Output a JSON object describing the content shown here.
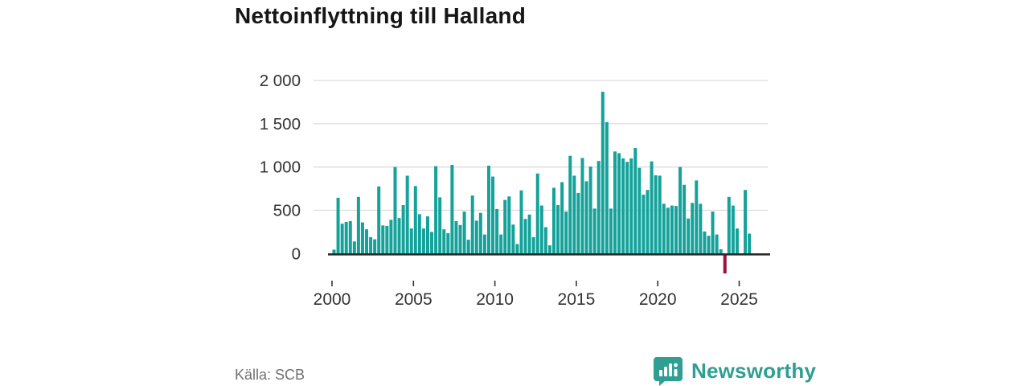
{
  "title": "Nettoinflyttning till Halland",
  "source_label": "Källa: SCB",
  "brand": {
    "wordmark": "Newsworthy"
  },
  "colors": {
    "bar_positive": "#14a29a",
    "bar_negative": "#a00d3f",
    "gridline": "#dcdcdc",
    "axis_line": "#2b2b2b",
    "tick_text": "#333333",
    "muted_text": "#717171",
    "brand_teal": "#2f9f93"
  },
  "chart_data": {
    "type": "bar",
    "title": "Nettoinflyttning till Halland",
    "xlabel": "",
    "ylabel": "",
    "frequency": "quarterly",
    "x_start": "2000Q1",
    "x_end": "2025Q3",
    "x_tick_labels": [
      "2000",
      "2005",
      "2010",
      "2015",
      "2020",
      "2025"
    ],
    "x_tick_years": [
      2000,
      2005,
      2010,
      2015,
      2020,
      2025
    ],
    "y_tick_labels": [
      "0",
      "500",
      "1 000",
      "1 500",
      "2 000"
    ],
    "y_tick_values": [
      0,
      500,
      1000,
      1500,
      2000
    ],
    "ylim": [
      -350,
      2100
    ],
    "grid": "horizontal",
    "legend": "none",
    "values": [
      45,
      645,
      345,
      365,
      375,
      140,
      655,
      360,
      280,
      190,
      165,
      775,
      325,
      320,
      390,
      1000,
      410,
      560,
      900,
      290,
      780,
      455,
      290,
      430,
      250,
      1010,
      650,
      280,
      235,
      1025,
      375,
      330,
      485,
      160,
      670,
      380,
      470,
      220,
      1015,
      890,
      515,
      220,
      620,
      660,
      335,
      110,
      730,
      400,
      450,
      190,
      925,
      555,
      305,
      95,
      760,
      560,
      825,
      485,
      1130,
      900,
      700,
      1105,
      835,
      1005,
      520,
      1070,
      1870,
      1520,
      520,
      1180,
      1160,
      1100,
      1060,
      1100,
      1220,
      990,
      680,
      735,
      1065,
      905,
      900,
      575,
      530,
      555,
      550,
      1000,
      795,
      405,
      585,
      845,
      575,
      255,
      205,
      485,
      220,
      50,
      -230,
      655,
      555,
      290,
      0,
      735,
      230
    ]
  }
}
